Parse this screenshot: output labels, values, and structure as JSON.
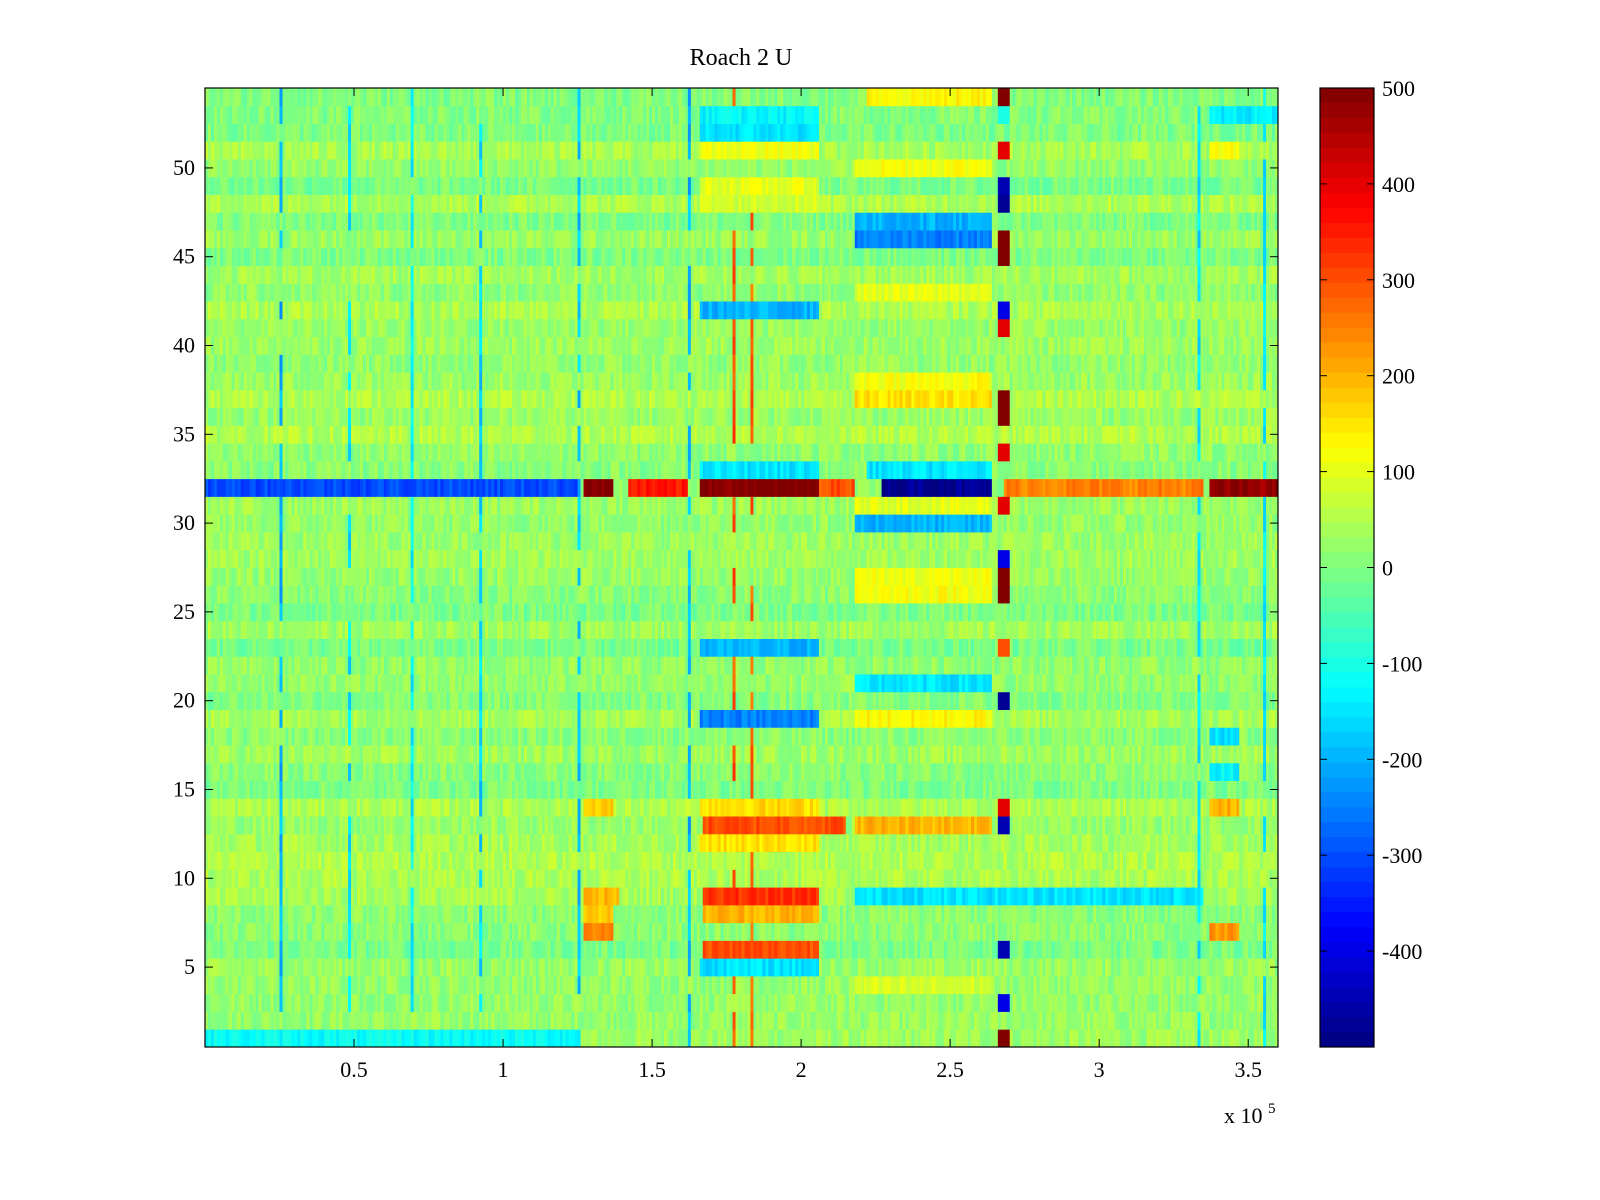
{
  "chart_data": {
    "type": "heatmap",
    "title": "Roach 2 U",
    "xlabel": "",
    "ylabel": "",
    "x_exponent_label": "x 10",
    "x_exponent_power": "5",
    "xlim": [
      0,
      3.6
    ],
    "ylim": [
      0.5,
      54.5
    ],
    "x_ticks": [
      0.5,
      1,
      1.5,
      2,
      2.5,
      3,
      3.5
    ],
    "x_tick_labels": [
      "0.5",
      "1",
      "1.5",
      "2",
      "2.5",
      "3",
      "3.5"
    ],
    "y_ticks": [
      5,
      10,
      15,
      20,
      25,
      30,
      35,
      40,
      45,
      50
    ],
    "y_tick_labels": [
      "5",
      "10",
      "15",
      "20",
      "25",
      "30",
      "35",
      "40",
      "45",
      "50"
    ],
    "rows": 54,
    "colormap": "jet",
    "clim": [
      -500,
      500
    ],
    "colorbar_ticks": [
      500,
      400,
      300,
      200,
      100,
      0,
      -100,
      -200,
      -300,
      -400
    ],
    "colorbar_tick_labels": [
      "500",
      "400",
      "300",
      "200",
      "100",
      "0",
      "-100",
      "-200",
      "-300",
      "-400"
    ],
    "grid": false,
    "colorbar_position": "right",
    "baseline_value": 20,
    "segments": [
      {
        "row": 32,
        "x0": 0.0,
        "x1": 1.25,
        "value": -300
      },
      {
        "row": 32,
        "x0": 1.27,
        "x1": 1.37,
        "value": 500
      },
      {
        "row": 32,
        "x0": 1.42,
        "x1": 1.62,
        "value": 350
      },
      {
        "row": 32,
        "x0": 1.66,
        "x1": 2.06,
        "value": 500
      },
      {
        "row": 32,
        "x0": 2.06,
        "x1": 2.19,
        "value": 300
      },
      {
        "row": 32,
        "x0": 2.27,
        "x1": 2.64,
        "value": -480
      },
      {
        "row": 32,
        "x0": 2.68,
        "x1": 3.35,
        "value": 250
      },
      {
        "row": 32,
        "x0": 3.37,
        "x1": 3.6,
        "value": 480
      },
      {
        "row": 33,
        "x0": 1.66,
        "x1": 2.06,
        "value": -150
      },
      {
        "row": 33,
        "x0": 2.22,
        "x1": 2.64,
        "value": -150
      },
      {
        "row": 31,
        "x0": 2.19,
        "x1": 2.64,
        "value": 100
      },
      {
        "row": 30,
        "x0": 2.19,
        "x1": 2.64,
        "value": -200
      },
      {
        "row": 52,
        "x0": 1.66,
        "x1": 2.06,
        "value": -150
      },
      {
        "row": 53,
        "x0": 1.66,
        "x1": 2.06,
        "value": -130
      },
      {
        "row": 54,
        "x0": 2.22,
        "x1": 2.64,
        "value": 130
      },
      {
        "row": 50,
        "x0": 2.19,
        "x1": 2.64,
        "value": 120
      },
      {
        "row": 47,
        "x0": 2.19,
        "x1": 2.64,
        "value": -200
      },
      {
        "row": 46,
        "x0": 2.19,
        "x1": 2.64,
        "value": -250
      },
      {
        "row": 49,
        "x0": 1.66,
        "x1": 2.06,
        "value": 100
      },
      {
        "row": 51,
        "x0": 1.66,
        "x1": 2.06,
        "value": 110
      },
      {
        "row": 42,
        "x0": 1.66,
        "x1": 2.06,
        "value": -200
      },
      {
        "row": 43,
        "x0": 2.19,
        "x1": 2.64,
        "value": 100
      },
      {
        "row": 37,
        "x0": 2.19,
        "x1": 2.64,
        "value": 150
      },
      {
        "row": 38,
        "x0": 2.19,
        "x1": 2.64,
        "value": 120
      },
      {
        "row": 19,
        "x0": 1.66,
        "x1": 2.06,
        "value": -250
      },
      {
        "row": 19,
        "x0": 2.19,
        "x1": 2.64,
        "value": 130
      },
      {
        "row": 13,
        "x0": 1.68,
        "x1": 2.15,
        "value": 300
      },
      {
        "row": 13,
        "x0": 2.19,
        "x1": 2.64,
        "value": 200
      },
      {
        "row": 14,
        "x0": 1.66,
        "x1": 2.06,
        "value": 160
      },
      {
        "row": 9,
        "x0": 1.68,
        "x1": 2.06,
        "value": 330
      },
      {
        "row": 9,
        "x0": 2.19,
        "x1": 3.35,
        "value": -150
      },
      {
        "row": 8,
        "x0": 1.68,
        "x1": 2.06,
        "value": 200
      },
      {
        "row": 6,
        "x0": 1.68,
        "x1": 2.06,
        "value": 300
      },
      {
        "row": 5,
        "x0": 1.66,
        "x1": 2.06,
        "value": -150
      },
      {
        "row": 7,
        "x0": 1.27,
        "x1": 1.37,
        "value": 250
      },
      {
        "row": 7,
        "x0": 3.37,
        "x1": 3.47,
        "value": 230
      },
      {
        "row": 14,
        "x0": 1.27,
        "x1": 1.37,
        "value": 180
      },
      {
        "row": 14,
        "x0": 3.37,
        "x1": 3.47,
        "value": 200
      },
      {
        "row": 1,
        "x0": 0.0,
        "x1": 1.25,
        "value": -120
      },
      {
        "row": 26,
        "x0": 2.19,
        "x1": 2.64,
        "value": 120
      },
      {
        "row": 27,
        "x0": 2.19,
        "x1": 2.64,
        "value": 110
      },
      {
        "row": 21,
        "x0": 2.19,
        "x1": 2.64,
        "value": -150
      },
      {
        "row": 23,
        "x0": 1.66,
        "x1": 2.06,
        "value": -200
      },
      {
        "row": 48,
        "x0": 1.66,
        "x1": 2.06,
        "value": 80
      },
      {
        "row": 18,
        "x0": 3.37,
        "x1": 3.47,
        "value": -150
      },
      {
        "row": 16,
        "x0": 3.37,
        "x1": 3.47,
        "value": -130
      },
      {
        "row": 53,
        "x0": 3.37,
        "x1": 3.6,
        "value": -140
      },
      {
        "row": 51,
        "x0": 3.37,
        "x1": 3.47,
        "value": 120
      },
      {
        "row": 8,
        "x0": 1.27,
        "x1": 1.37,
        "value": 180
      },
      {
        "row": 9,
        "x0": 1.27,
        "x1": 1.4,
        "value": 200
      },
      {
        "row": 12,
        "x0": 1.66,
        "x1": 2.06,
        "value": 150
      },
      {
        "row": 4,
        "x0": 2.19,
        "x1": 2.64,
        "value": 80
      }
    ],
    "column_streaks": [
      {
        "x": 0.25,
        "value": -200
      },
      {
        "x": 0.48,
        "value": -150
      },
      {
        "x": 0.7,
        "value": -130
      },
      {
        "x": 0.92,
        "value": -170
      },
      {
        "x": 1.25,
        "value": -180
      },
      {
        "x": 1.63,
        "value": -200
      },
      {
        "x": 1.77,
        "value": 300
      },
      {
        "x": 1.83,
        "value": 280
      },
      {
        "x": 3.33,
        "value": -150
      },
      {
        "x": 3.55,
        "value": -140
      }
    ],
    "dark_column": {
      "x0": 2.66,
      "x1": 2.7,
      "values": [
        500,
        0,
        -400,
        0,
        0,
        -450,
        0,
        0,
        0,
        0,
        0,
        0,
        -450,
        400,
        0,
        0,
        0,
        0,
        0,
        -480,
        0,
        0,
        300,
        0,
        0,
        500,
        500,
        -400,
        0,
        0,
        400,
        0,
        0,
        400,
        0,
        500,
        500,
        0,
        0,
        0,
        400,
        -400,
        0,
        0,
        500,
        500,
        0,
        -480,
        -450,
        0,
        400,
        0,
        -100,
        500
      ]
    }
  }
}
